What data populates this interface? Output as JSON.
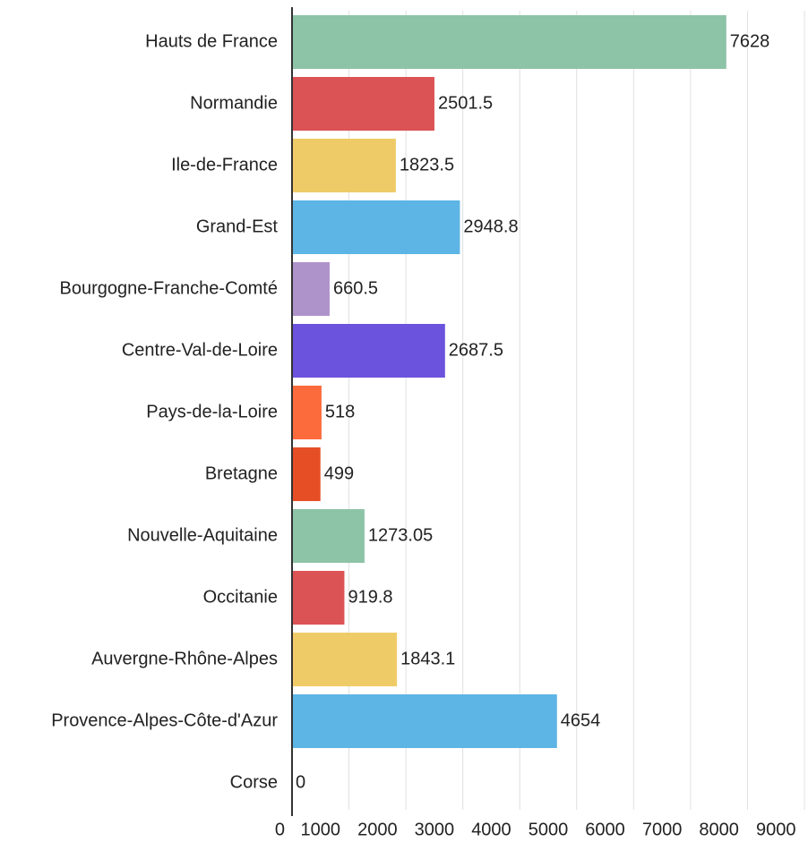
{
  "chart_data": {
    "type": "hbar",
    "categories": [
      "Hauts de France",
      "Normandie",
      "Ile-de-France",
      "Grand-Est",
      "Bourgogne-Franche-Comté",
      "Centre-Val-de-Loire",
      "Pays-de-la-Loire",
      "Bretagne",
      "Nouvelle-Aquitaine",
      "Occitanie",
      "Auvergne-Rhône-Alpes",
      "Provence-Alpes-Côte-d'Azur",
      "Corse"
    ],
    "values": [
      7628,
      2501.5,
      1823.5,
      2948.8,
      660.5,
      2687.5,
      518,
      499,
      1273.05,
      919.8,
      1843.1,
      4654,
      0
    ],
    "colors": [
      "#8dc3a7",
      "#dc5356",
      "#efcb68",
      "#5db5e5",
      "#ae93cb",
      "#6c53de",
      "#fc6b3b",
      "#e64e26",
      "#8dc3a7",
      "#dc5356",
      "#efcb68",
      "#5db5e5",
      "#5db5e5"
    ],
    "xlim": [
      0,
      9000
    ],
    "xticks": [
      0,
      1000,
      2000,
      3000,
      4000,
      5000,
      6000,
      7000,
      8000,
      9000
    ],
    "grid": true
  }
}
